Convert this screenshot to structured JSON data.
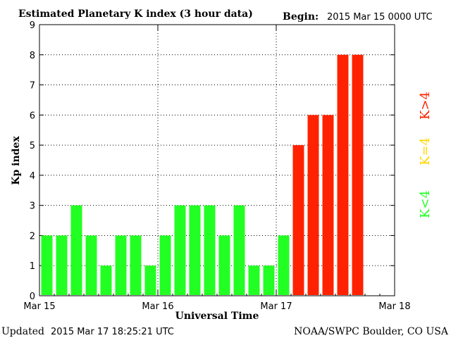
{
  "header": {
    "title": "Estimated Planetary K index (3 hour data)",
    "begin_label": "Begin:",
    "begin_value": "2015 Mar 15 0000 UTC"
  },
  "footer": {
    "updated_label": "Updated",
    "updated_value": "2015 Mar 17 18:25:21 UTC",
    "source": "NOAA/SWPC Boulder, CO USA"
  },
  "legend": {
    "k_above_4": "K>4",
    "k_equal_4": "K=4",
    "k_below_4": "K<4"
  },
  "colors": {
    "k_below_4": "#22ff22",
    "k_equal_4": "#ffd700",
    "k_above_4": "#ff2200"
  },
  "chart_data": {
    "type": "bar",
    "title": "Estimated Planetary K index (3 hour data)",
    "xlabel": "Universal Time",
    "ylabel": "Kp index",
    "ylim": [
      0,
      9
    ],
    "yticks": [
      0,
      1,
      2,
      3,
      4,
      5,
      6,
      7,
      8,
      9
    ],
    "xticks": [
      "Mar 15",
      "Mar 16",
      "Mar 17",
      "Mar 18"
    ],
    "grid": true,
    "interval_hours": 3,
    "values": [
      2,
      2,
      3,
      2,
      1,
      2,
      2,
      1,
      2,
      3,
      3,
      3,
      2,
      3,
      1,
      1,
      2,
      5,
      6,
      6,
      8,
      8
    ]
  }
}
